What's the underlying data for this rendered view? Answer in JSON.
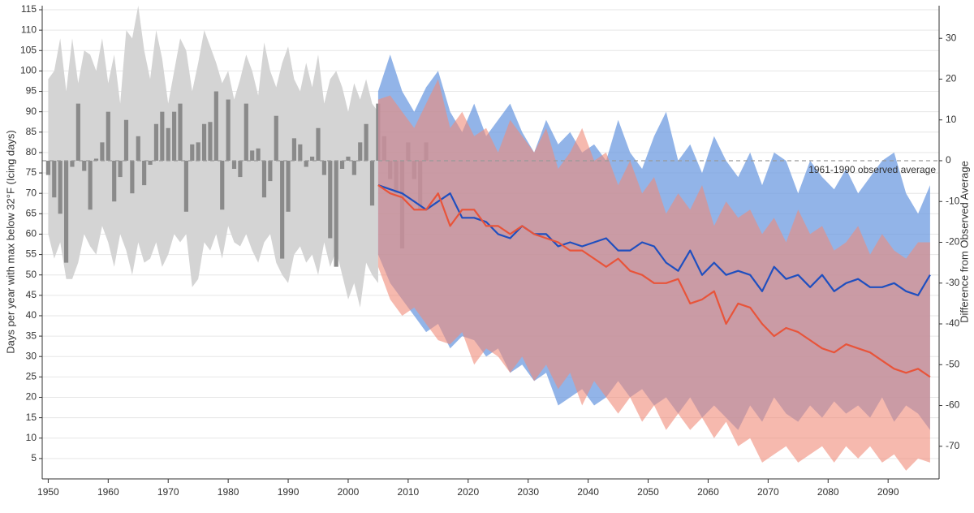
{
  "chart_data": {
    "type": "combo",
    "ylabel": "Days per year with max below 32°F (Icing days)",
    "y2label": "Difference from Observed Average",
    "xlim": [
      1949,
      2098.5
    ],
    "ylim": [
      0,
      116
    ],
    "y2lim": [
      -78,
      38
    ],
    "xticks": [
      1950,
      1960,
      1970,
      1980,
      1990,
      2000,
      2010,
      2020,
      2030,
      2040,
      2050,
      2060,
      2070,
      2080,
      2090
    ],
    "yticks": [
      5,
      10,
      15,
      20,
      25,
      30,
      35,
      40,
      45,
      50,
      55,
      60,
      65,
      70,
      75,
      80,
      85,
      90,
      95,
      100,
      105,
      110,
      115
    ],
    "y2ticks": [
      -70,
      -60,
      -50,
      -40,
      -30,
      -20,
      -10,
      0,
      10,
      20,
      30
    ],
    "grid": true,
    "reference": {
      "value": 0,
      "axis": "y2",
      "label": "1961-1990 observed average"
    },
    "series": [
      {
        "type": "band",
        "color": "#d4d4d4",
        "opacity": 1,
        "x": [
          1950,
          1951,
          1952,
          1953,
          1954,
          1955,
          1956,
          1957,
          1958,
          1959,
          1960,
          1961,
          1962,
          1963,
          1964,
          1965,
          1966,
          1967,
          1968,
          1969,
          1970,
          1971,
          1972,
          1973,
          1974,
          1975,
          1976,
          1977,
          1978,
          1979,
          1980,
          1981,
          1982,
          1983,
          1984,
          1985,
          1986,
          1987,
          1988,
          1989,
          1990,
          1991,
          1992,
          1993,
          1994,
          1995,
          1996,
          1997,
          1998,
          1999,
          2000,
          2001,
          2002,
          2003,
          2004,
          2005
        ],
        "high": [
          98,
          100,
          108,
          95,
          108,
          97,
          105,
          104,
          100,
          108,
          97,
          104,
          92,
          110,
          108,
          116,
          105,
          98,
          110,
          103,
          92,
          100,
          108,
          105,
          95,
          102,
          110,
          106,
          102,
          97,
          100,
          93,
          98,
          104,
          100,
          94,
          107,
          100,
          96,
          102,
          106,
          98,
          95,
          102,
          96,
          104,
          92,
          98,
          100,
          96,
          90,
          97,
          93,
          98,
          92,
          90
        ],
        "low": [
          60,
          54,
          58,
          49,
          49,
          53,
          60,
          57,
          55,
          62,
          58,
          52,
          60,
          56,
          50,
          58,
          53,
          54,
          58,
          52,
          55,
          60,
          58,
          60,
          47,
          49,
          58,
          56,
          60,
          54,
          62,
          58,
          57,
          60,
          56,
          53,
          58,
          60,
          53,
          50,
          48,
          55,
          57,
          53,
          55,
          50,
          58,
          52,
          56,
          50,
          44,
          48,
          42,
          53,
          50,
          48
        ]
      },
      {
        "type": "bar",
        "color": "#8a8a8a",
        "axis": "y2",
        "x": [
          1950,
          1951,
          1952,
          1953,
          1954,
          1955,
          1956,
          1957,
          1958,
          1959,
          1960,
          1961,
          1962,
          1963,
          1964,
          1965,
          1966,
          1967,
          1968,
          1969,
          1970,
          1971,
          1972,
          1973,
          1974,
          1975,
          1976,
          1977,
          1978,
          1979,
          1980,
          1981,
          1982,
          1983,
          1984,
          1985,
          1986,
          1987,
          1988,
          1989,
          1990,
          1991,
          1992,
          1993,
          1994,
          1995,
          1996,
          1997,
          1998,
          1999,
          2000,
          2001,
          2002,
          2003,
          2004,
          2005,
          2006,
          2007,
          2008,
          2009,
          2010,
          2011,
          2012,
          2013
        ],
        "values": [
          -3.5,
          -9,
          -13,
          -25,
          -1.5,
          14,
          -2.5,
          -12,
          0.5,
          4.5,
          12,
          -10,
          -4,
          10,
          -8,
          6,
          -6,
          -1,
          9,
          12,
          8,
          12,
          14,
          -12.5,
          4,
          4.5,
          9,
          9.5,
          17,
          -12,
          15,
          -2,
          -4,
          14,
          2.5,
          3,
          -9,
          -5,
          11,
          -24,
          -12.5,
          5.5,
          4,
          -1.5,
          1,
          8,
          -3.5,
          -19,
          -26,
          -2,
          1,
          -3.5,
          4.5,
          9,
          -11,
          14,
          6,
          -4.5,
          -8,
          -21.5,
          4.5,
          -4.5,
          -12,
          4.5
        ]
      },
      {
        "type": "band",
        "color": "#6e9be0",
        "opacity": 0.75,
        "x": [
          2005,
          2007,
          2009,
          2011,
          2013,
          2015,
          2017,
          2019,
          2021,
          2023,
          2025,
          2027,
          2029,
          2031,
          2033,
          2035,
          2037,
          2039,
          2041,
          2043,
          2045,
          2047,
          2049,
          2051,
          2053,
          2055,
          2057,
          2059,
          2061,
          2063,
          2065,
          2067,
          2069,
          2071,
          2073,
          2075,
          2077,
          2079,
          2081,
          2083,
          2085,
          2087,
          2089,
          2091,
          2093,
          2095,
          2097
        ],
        "high": [
          95,
          104,
          95,
          90,
          96,
          100,
          90,
          85,
          92,
          84,
          88,
          92,
          85,
          80,
          88,
          82,
          85,
          80,
          82,
          78,
          88,
          80,
          76,
          84,
          90,
          78,
          82,
          75,
          84,
          78,
          74,
          80,
          72,
          80,
          78,
          70,
          78,
          74,
          71,
          76,
          70,
          74,
          78,
          80,
          70,
          65,
          72
        ],
        "low": [
          55,
          48,
          44,
          40,
          36,
          38,
          32,
          35,
          34,
          30,
          32,
          26,
          28,
          24,
          26,
          18,
          20,
          22,
          18,
          20,
          24,
          20,
          22,
          18,
          20,
          16,
          20,
          15,
          18,
          15,
          12,
          18,
          14,
          20,
          16,
          14,
          18,
          15,
          19,
          16,
          18,
          15,
          20,
          14,
          18,
          16,
          12
        ]
      },
      {
        "type": "band",
        "color": "#f08a78",
        "opacity": 0.6,
        "x": [
          2005,
          2007,
          2009,
          2011,
          2013,
          2015,
          2017,
          2019,
          2021,
          2023,
          2025,
          2027,
          2029,
          2031,
          2033,
          2035,
          2037,
          2039,
          2041,
          2043,
          2045,
          2047,
          2049,
          2051,
          2053,
          2055,
          2057,
          2059,
          2061,
          2063,
          2065,
          2067,
          2069,
          2071,
          2073,
          2075,
          2077,
          2079,
          2081,
          2083,
          2085,
          2087,
          2089,
          2091,
          2093,
          2095,
          2097
        ],
        "high": [
          93,
          94,
          90,
          86,
          92,
          98,
          86,
          90,
          84,
          86,
          80,
          88,
          84,
          80,
          86,
          76,
          80,
          86,
          78,
          80,
          72,
          78,
          70,
          74,
          65,
          70,
          66,
          72,
          62,
          68,
          64,
          66,
          60,
          64,
          58,
          66,
          60,
          62,
          56,
          58,
          62,
          55,
          60,
          56,
          54,
          58,
          58
        ],
        "low": [
          52,
          44,
          40,
          42,
          38,
          34,
          33,
          36,
          28,
          32,
          30,
          26,
          30,
          24,
          28,
          22,
          26,
          18,
          24,
          20,
          16,
          20,
          14,
          18,
          12,
          16,
          12,
          15,
          10,
          14,
          8,
          10,
          4,
          6,
          8,
          4,
          6,
          8,
          4,
          8,
          5,
          8,
          4,
          6,
          2,
          5,
          4
        ]
      },
      {
        "type": "line",
        "color": "#1f4fbf",
        "x": [
          2005,
          2007,
          2009,
          2011,
          2013,
          2015,
          2017,
          2019,
          2021,
          2023,
          2025,
          2027,
          2029,
          2031,
          2033,
          2035,
          2037,
          2039,
          2041,
          2043,
          2045,
          2047,
          2049,
          2051,
          2053,
          2055,
          2057,
          2059,
          2061,
          2063,
          2065,
          2067,
          2069,
          2071,
          2073,
          2075,
          2077,
          2079,
          2081,
          2083,
          2085,
          2087,
          2089,
          2091,
          2093,
          2095,
          2097
        ],
        "values": [
          72,
          71,
          70,
          68,
          66,
          68,
          70,
          64,
          64,
          63,
          60,
          59,
          62,
          60,
          60,
          57,
          58,
          57,
          58,
          59,
          56,
          56,
          58,
          57,
          53,
          51,
          56,
          50,
          53,
          50,
          51,
          50,
          46,
          52,
          49,
          50,
          47,
          50,
          46,
          48,
          49,
          47,
          47,
          48,
          46,
          45,
          50
        ]
      },
      {
        "type": "line",
        "color": "#e8543a",
        "x": [
          2005,
          2007,
          2009,
          2011,
          2013,
          2015,
          2017,
          2019,
          2021,
          2023,
          2025,
          2027,
          2029,
          2031,
          2033,
          2035,
          2037,
          2039,
          2041,
          2043,
          2045,
          2047,
          2049,
          2051,
          2053,
          2055,
          2057,
          2059,
          2061,
          2063,
          2065,
          2067,
          2069,
          2071,
          2073,
          2075,
          2077,
          2079,
          2081,
          2083,
          2085,
          2087,
          2089,
          2091,
          2093,
          2095,
          2097
        ],
        "values": [
          72,
          70,
          69,
          66,
          66,
          70,
          62,
          66,
          66,
          62,
          62,
          60,
          62,
          60,
          59,
          58,
          56,
          56,
          54,
          52,
          54,
          51,
          50,
          48,
          48,
          49,
          43,
          44,
          46,
          38,
          43,
          42,
          38,
          35,
          37,
          36,
          34,
          32,
          31,
          33,
          32,
          31,
          29,
          27,
          26,
          27,
          25
        ]
      }
    ]
  }
}
